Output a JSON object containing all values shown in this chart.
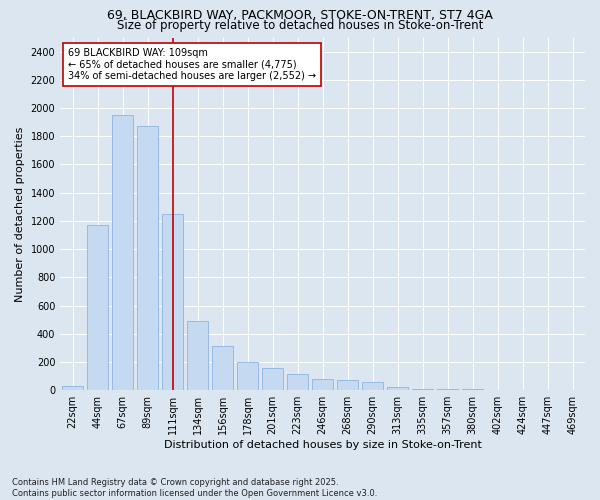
{
  "title_line1": "69, BLACKBIRD WAY, PACKMOOR, STOKE-ON-TRENT, ST7 4GA",
  "title_line2": "Size of property relative to detached houses in Stoke-on-Trent",
  "xlabel": "Distribution of detached houses by size in Stoke-on-Trent",
  "ylabel": "Number of detached properties",
  "categories": [
    "22sqm",
    "44sqm",
    "67sqm",
    "89sqm",
    "111sqm",
    "134sqm",
    "156sqm",
    "178sqm",
    "201sqm",
    "223sqm",
    "246sqm",
    "268sqm",
    "290sqm",
    "313sqm",
    "335sqm",
    "357sqm",
    "380sqm",
    "402sqm",
    "424sqm",
    "447sqm",
    "469sqm"
  ],
  "values": [
    30,
    1170,
    1950,
    1870,
    1250,
    490,
    310,
    200,
    155,
    115,
    80,
    70,
    55,
    20,
    12,
    8,
    6,
    4,
    4,
    3,
    3
  ],
  "bar_color": "#c5d9f1",
  "bar_edge_color": "#8db4e2",
  "highlight_index": 4,
  "highlight_color": "#c00000",
  "annotation_text": "69 BLACKBIRD WAY: 109sqm\n← 65% of detached houses are smaller (4,775)\n34% of semi-detached houses are larger (2,552) →",
  "annotation_box_color": "#ffffff",
  "annotation_box_edge": "#c00000",
  "ylim": [
    0,
    2500
  ],
  "yticks": [
    0,
    200,
    400,
    600,
    800,
    1000,
    1200,
    1400,
    1600,
    1800,
    2000,
    2200,
    2400
  ],
  "footnote": "Contains HM Land Registry data © Crown copyright and database right 2025.\nContains public sector information licensed under the Open Government Licence v3.0.",
  "bg_color": "#dce6f1",
  "plot_bg_color": "#dce6f1",
  "grid_color": "#ffffff",
  "title_fontsize": 9,
  "subtitle_fontsize": 8.5,
  "axis_label_fontsize": 8,
  "tick_fontsize": 7,
  "annotation_fontsize": 7,
  "footnote_fontsize": 6
}
